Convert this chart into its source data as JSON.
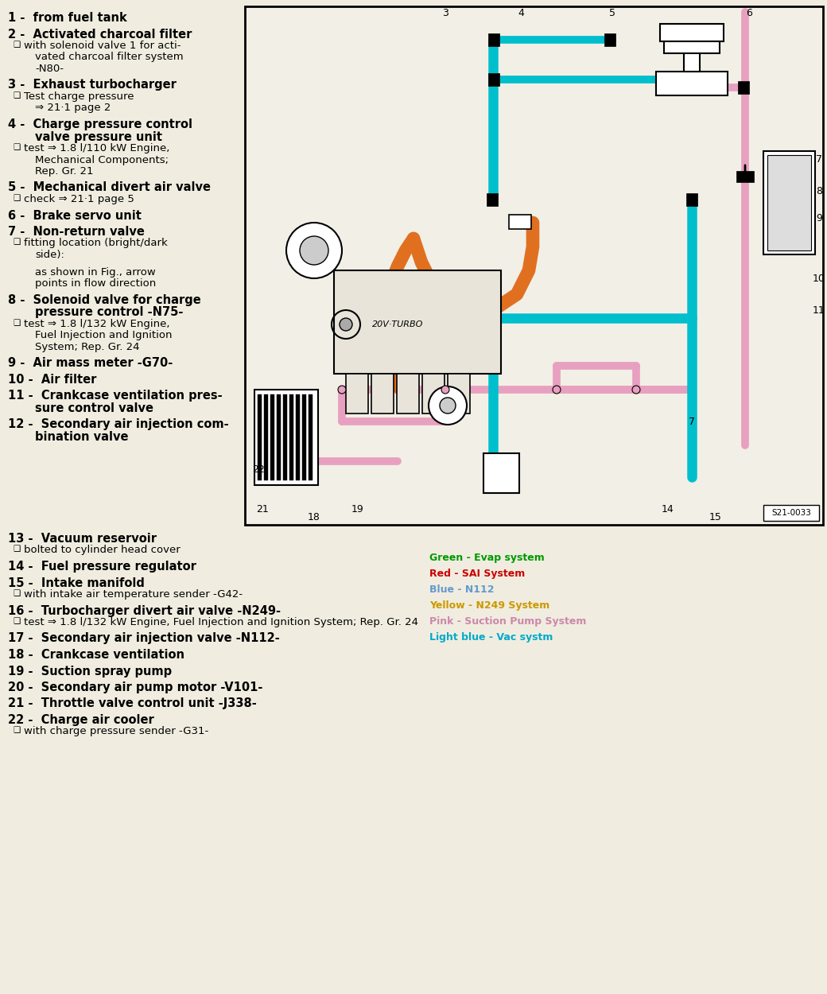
{
  "bg_color": "#f0ede0",
  "items": [
    {
      "num": "1",
      "bold": true,
      "text": "from fuel tank",
      "sub": []
    },
    {
      "num": "2",
      "bold": true,
      "text": "Activated charcoal filter",
      "sub": [
        {
          "checkbox": true,
          "lines": [
            "with solenoid valve 1 for acti-",
            "vated charcoal filter system",
            "-N80-"
          ]
        }
      ]
    },
    {
      "num": "3",
      "bold": true,
      "text": "Exhaust turbocharger",
      "sub": [
        {
          "checkbox": true,
          "lines": [
            "Test charge pressure",
            "⇒ 21·1 page 2"
          ]
        }
      ]
    },
    {
      "num": "4",
      "bold": true,
      "text": "Charge pressure control",
      "text2": "valve pressure unit",
      "sub": [
        {
          "checkbox": true,
          "lines": [
            "test ⇒ 1.8 l/110 kW Engine,",
            "Mechanical Components;",
            "Rep. Gr. 21"
          ]
        }
      ]
    },
    {
      "num": "5",
      "bold": true,
      "text": "Mechanical divert air valve",
      "sub": [
        {
          "checkbox": true,
          "lines": [
            "check ⇒ 21·1 page 5"
          ]
        }
      ]
    },
    {
      "num": "6",
      "bold": true,
      "text": "Brake servo unit",
      "sub": []
    },
    {
      "num": "7",
      "bold": true,
      "text": "Non-return valve",
      "sub": [
        {
          "checkbox": true,
          "lines": [
            "fitting location (bright/dark",
            "side):"
          ]
        },
        {
          "checkbox": false,
          "lines": [
            "",
            "  as shown in Fig., arrow",
            "  points in flow direction"
          ]
        }
      ]
    },
    {
      "num": "8",
      "bold": true,
      "text": "Solenoid valve for charge",
      "text2": "pressure control -N75-",
      "sub": [
        {
          "checkbox": true,
          "lines": [
            "test ⇒ 1.8 l/132 kW Engine,",
            "Fuel Injection and Ignition",
            "System; Rep. Gr. 24"
          ]
        }
      ]
    },
    {
      "num": "9",
      "bold": true,
      "text": "Air mass meter -G70-",
      "sub": []
    },
    {
      "num": "10",
      "bold": true,
      "text": "Air filter",
      "sub": []
    },
    {
      "num": "11",
      "bold": true,
      "text": "Crankcase ventilation pres-",
      "text2": "sure control valve",
      "sub": []
    },
    {
      "num": "12",
      "bold": true,
      "text": "Secondary air injection com-",
      "text2": "bination valve",
      "sub": []
    },
    {
      "num": "13",
      "bold": true,
      "text": "Vacuum reservoir",
      "sub": [
        {
          "checkbox": true,
          "lines": [
            "bolted to cylinder head cover"
          ]
        }
      ]
    },
    {
      "num": "14",
      "bold": true,
      "text": "Fuel pressure regulator",
      "sub": []
    },
    {
      "num": "15",
      "bold": true,
      "text": "Intake manifold",
      "sub": [
        {
          "checkbox": true,
          "lines": [
            "with intake air temperature sender -G42-"
          ]
        }
      ]
    },
    {
      "num": "16",
      "bold": true,
      "text": "Turbocharger divert air valve -N249-",
      "sub": [
        {
          "checkbox": true,
          "lines": [
            "test ⇒ 1.8 l/132 kW Engine, Fuel Injection and Ignition System; Rep. Gr. 24"
          ]
        }
      ]
    },
    {
      "num": "17",
      "bold": true,
      "text": "Secondary air injection valve -N112-",
      "sub": []
    },
    {
      "num": "18",
      "bold": true,
      "text": "Crankcase ventilation",
      "sub": []
    },
    {
      "num": "19",
      "bold": true,
      "text": "Suction spray pump",
      "sub": []
    },
    {
      "num": "20",
      "bold": true,
      "text": "Secondary air pump motor -V101-",
      "sub": []
    },
    {
      "num": "21",
      "bold": true,
      "text": "Throttle valve control unit -J338-",
      "sub": []
    },
    {
      "num": "22",
      "bold": true,
      "text": "Charge air cooler",
      "sub": [
        {
          "checkbox": true,
          "lines": [
            "with charge pressure sender -G31-"
          ]
        }
      ]
    }
  ],
  "legend": [
    {
      "text": "Green - Evap system",
      "color": "#009900"
    },
    {
      "text": "Red - SAI System",
      "color": "#cc0000"
    },
    {
      "text": "Blue - N112",
      "color": "#6699cc"
    },
    {
      "text": "Yellow - N249 System",
      "color": "#cc9900"
    },
    {
      "text": "Pink - Suction Pump System",
      "color": "#cc88aa"
    },
    {
      "text": "Light blue - Vac systm",
      "color": "#00aacc"
    }
  ],
  "diagram_ref": "S21-0033",
  "orange": "#e07020",
  "cyan": "#00bfcc",
  "pink": "#e8a0c0",
  "dark_pink": "#cc88aa"
}
